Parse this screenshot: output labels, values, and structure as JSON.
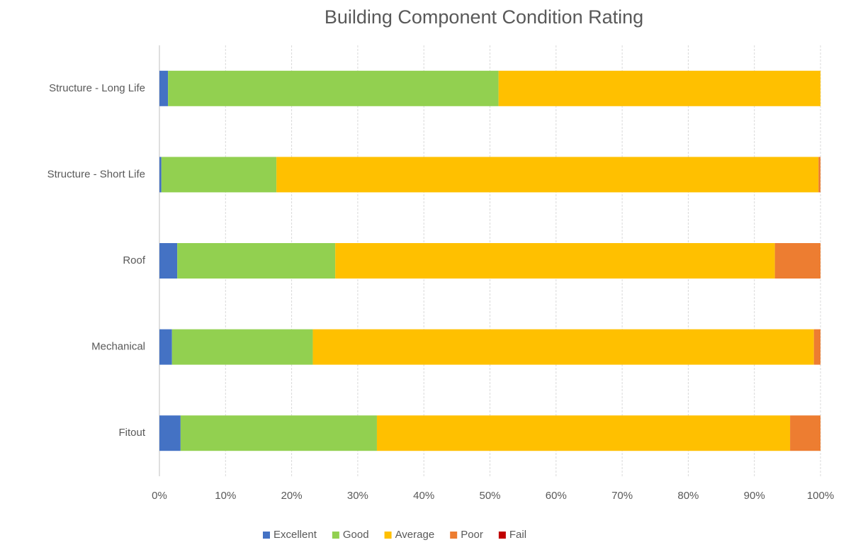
{
  "chart_data": {
    "type": "stacked_barh",
    "title": "Building Component Condition Rating",
    "categories": [
      "Structure - Long Life",
      "Structure - Short Life",
      "Roof",
      "Mechanical",
      "Fitout"
    ],
    "series": [
      {
        "name": "Excellent",
        "color": "#4472c4",
        "values": [
          1.3,
          0.3,
          2.7,
          1.9,
          3.2
        ]
      },
      {
        "name": "Good",
        "color": "#92d050",
        "values": [
          50.0,
          17.4,
          23.9,
          21.3,
          29.7
        ]
      },
      {
        "name": "Average",
        "color": "#ffc000",
        "values": [
          48.7,
          82.0,
          66.5,
          75.8,
          62.5
        ]
      },
      {
        "name": "Poor",
        "color": "#ed7d31",
        "values": [
          0,
          0.3,
          6.9,
          1.0,
          4.6
        ]
      },
      {
        "name": "Fail",
        "color": "#c00000",
        "values": [
          0,
          0,
          0,
          0,
          0
        ]
      }
    ],
    "xlim": [
      0,
      100
    ],
    "xticks": [
      {
        "value": 0,
        "label": "0%"
      },
      {
        "value": 10,
        "label": "10%"
      },
      {
        "value": 20,
        "label": "20%"
      },
      {
        "value": 30,
        "label": "30%"
      },
      {
        "value": 40,
        "label": "40%"
      },
      {
        "value": 50,
        "label": "50%"
      },
      {
        "value": 60,
        "label": "60%"
      },
      {
        "value": 70,
        "label": "70%"
      },
      {
        "value": 80,
        "label": "80%"
      },
      {
        "value": 90,
        "label": "90%"
      },
      {
        "value": 100,
        "label": "100%"
      }
    ],
    "grid": true,
    "legend": "bottom"
  }
}
